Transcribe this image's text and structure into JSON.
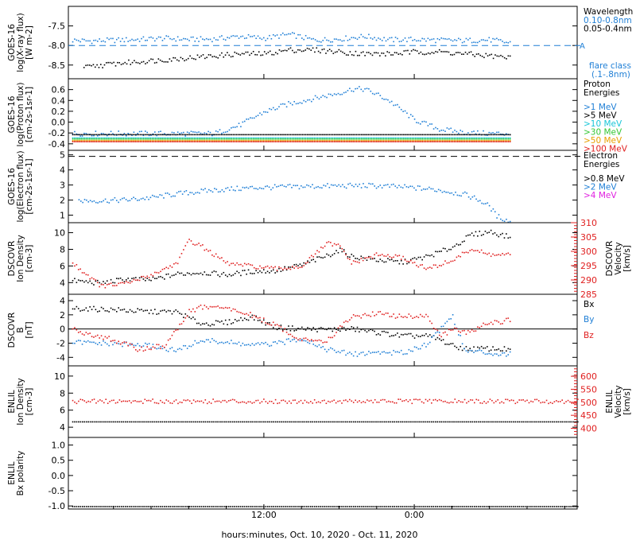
{
  "figure": {
    "xaxis_title": "hours:minutes, Oct. 10, 2020 - Oct. 11, 2020",
    "x_ticks": [
      "12:00",
      "0:00"
    ]
  },
  "chart_data": [
    {
      "id": "xray",
      "type": "scatter",
      "ylabel": [
        "GOES-16",
        "log(X-ray flux)",
        "[W m-2]"
      ],
      "yticks": [
        "-7.5",
        "-8.0",
        "-8.5"
      ],
      "ylim": [
        -8.85,
        -7.0
      ],
      "ticks_values": [
        -7.5,
        -8.0,
        -8.5
      ],
      "legend": {
        "title": "Wavelength",
        "items": [
          {
            "label": "0.10-0.8nm",
            "color": "#1f7fd6"
          },
          {
            "label": "0.05-0.4nm",
            "color": "#000000"
          }
        ]
      },
      "side_notes": {
        "flare_marker": "A",
        "flare_label": [
          "flare class",
          "(.1-.8nm)"
        ]
      },
      "threshold_line": -8.0,
      "series": [
        {
          "name": "0.10-0.8nm",
          "color": "#1f7fd6",
          "x": [
            -3.3,
            -2,
            0,
            2,
            4,
            6,
            8,
            10,
            12,
            14,
            16,
            18,
            20,
            22,
            24,
            26,
            28,
            30,
            31.6
          ],
          "y": [
            -7.85,
            -7.87,
            -7.85,
            -7.83,
            -7.8,
            -7.83,
            -7.82,
            -7.75,
            -7.8,
            -7.7,
            -7.85,
            -7.82,
            -7.75,
            -7.84,
            -7.83,
            -7.85,
            -7.86,
            -7.84,
            -7.92
          ]
        },
        {
          "name": "0.05-0.4nm",
          "color": "#000000",
          "x": [
            -2.4,
            0,
            2,
            4,
            6,
            8,
            10,
            12,
            14,
            16,
            18,
            20,
            22,
            24,
            26,
            28,
            30,
            31.6
          ],
          "y": [
            -8.55,
            -8.45,
            -8.4,
            -8.35,
            -8.3,
            -8.25,
            -8.2,
            -8.2,
            -8.1,
            -8.1,
            -8.15,
            -8.2,
            -8.2,
            -8.15,
            -8.15,
            -8.2,
            -8.25,
            -8.3
          ]
        }
      ]
    },
    {
      "id": "proton",
      "type": "scatter",
      "ylabel": [
        "GOES-16",
        "log(Proton flux)",
        "[cm-2s-1sr-1]"
      ],
      "yticks": [
        "0.6",
        "0.4",
        "0.2",
        "0.0",
        "-0.2",
        "-0.4"
      ],
      "ylim": [
        -0.52,
        0.8
      ],
      "ticks_values": [
        0.6,
        0.4,
        0.2,
        0.0,
        -0.2,
        -0.4
      ],
      "legend": {
        "title": "Proton Energies",
        "items": [
          {
            "label": ">1 MeV",
            "color": "#1f7fd6"
          },
          {
            "label": ">5 MeV",
            "color": "#000000"
          },
          {
            "label": ">10 MeV",
            "color": "#19c6d8"
          },
          {
            "label": ">30 MeV",
            "color": "#33c733"
          },
          {
            "label": ">50 MeV",
            "color": "#e8a000"
          },
          {
            "label": ">100 MeV",
            "color": "#e02020"
          }
        ]
      },
      "series": [
        {
          "name": ">1 MeV",
          "color": "#1f7fd6",
          "x": [
            -3.3,
            0,
            4,
            8,
            10,
            12,
            14,
            16,
            18,
            19,
            20,
            21,
            22,
            24,
            26,
            28,
            30,
            31.6
          ],
          "y": [
            -0.2,
            -0.2,
            -0.2,
            -0.2,
            -0.05,
            0.2,
            0.35,
            0.45,
            0.55,
            0.62,
            0.62,
            0.52,
            0.4,
            0.05,
            -0.12,
            -0.18,
            -0.2,
            -0.2
          ]
        },
        {
          "name": ">5 MeV",
          "color": "#000000",
          "x": [
            -3.3,
            31.6
          ],
          "y": [
            -0.22,
            -0.22
          ]
        },
        {
          "name": ">10 MeV",
          "color": "#19c6d8",
          "x": [
            -3.3,
            31.6
          ],
          "y": [
            -0.28,
            -0.28
          ]
        },
        {
          "name": ">30 MeV",
          "color": "#33c733",
          "x": [
            -3.3,
            31.6
          ],
          "y": [
            -0.3,
            -0.3
          ]
        },
        {
          "name": ">50 MeV",
          "color": "#e8a000",
          "x": [
            -3.3,
            31.6
          ],
          "y": [
            -0.33,
            -0.33
          ]
        },
        {
          "name": ">100 MeV",
          "color": "#e02020",
          "x": [
            -3.3,
            31.6
          ],
          "y": [
            -0.35,
            -0.35
          ]
        }
      ]
    },
    {
      "id": "electron",
      "type": "scatter",
      "ylabel": [
        "GOES-16",
        "log(Electron flux)",
        "[cm-2s-1sr-1]"
      ],
      "yticks": [
        "5",
        "4",
        "3",
        "2",
        "1"
      ],
      "ylim": [
        0.5,
        5.3
      ],
      "ticks_values": [
        5,
        4,
        3,
        2,
        1
      ],
      "threshold_line": 4.9,
      "legend": {
        "title": "Electron Energies",
        "items": [
          {
            "label": ">0.8 MeV",
            "color": "#000000"
          },
          {
            "label": ">2 MeV",
            "color": "#1f7fd6"
          },
          {
            "label": ">4 MeV",
            "color": "#e020e0"
          }
        ]
      },
      "series": [
        {
          "name": ">2 MeV",
          "color": "#1f7fd6",
          "x": [
            -2.8,
            -1,
            1,
            3,
            5,
            8,
            11,
            14,
            17,
            20,
            22,
            24,
            26,
            28,
            29,
            30,
            30.5,
            31.6
          ],
          "y": [
            2.0,
            2.0,
            2.05,
            2.2,
            2.45,
            2.7,
            2.85,
            2.92,
            2.97,
            3.0,
            2.95,
            2.85,
            2.7,
            2.4,
            2.1,
            1.6,
            1.0,
            0.6
          ]
        }
      ]
    },
    {
      "id": "dscovr_density",
      "type": "scatter",
      "ylabel": [
        "DSCOVR",
        "Ion Density",
        "[cm-3]"
      ],
      "yticks": [
        "10",
        "8",
        "6",
        "4"
      ],
      "ylim": [
        2.6,
        11.2
      ],
      "ticks_values": [
        10,
        8,
        6,
        4
      ],
      "right_ylabel": [
        "DSCOVR",
        "Velocity",
        "[km/s]"
      ],
      "right_yticks": [
        "310",
        "305",
        "300",
        "295",
        "290",
        "285"
      ],
      "right_ylim": [
        285,
        310
      ],
      "legend": {
        "title": "",
        "items": []
      },
      "series": [
        {
          "name": "Ion Density",
          "color": "#000000",
          "x": [
            -3.3,
            -1,
            1,
            3,
            5,
            7,
            9,
            11,
            13,
            15,
            17,
            18,
            19,
            21,
            23,
            25,
            27,
            28.5,
            30,
            31.6
          ],
          "y": [
            4.3,
            4.0,
            4.5,
            4.4,
            5.1,
            5.3,
            5.0,
            5.4,
            5.5,
            6.2,
            7.3,
            8.0,
            7.2,
            6.8,
            6.5,
            7.2,
            8.3,
            9.8,
            10.2,
            9.5
          ]
        },
        {
          "name": "Velocity",
          "color": "#e02020",
          "axis": "right",
          "x": [
            -3.3,
            -1,
            1,
            3,
            5,
            6,
            7,
            9,
            11,
            13,
            15,
            17,
            18,
            19,
            21,
            23,
            25,
            27,
            28.5,
            30,
            31.6
          ],
          "y": [
            296,
            288,
            289,
            292,
            296,
            304,
            302,
            296,
            295,
            294,
            295,
            303,
            302,
            296,
            299,
            298,
            294,
            297,
            301,
            299,
            299
          ]
        }
      ]
    },
    {
      "id": "dscovr_b",
      "type": "scatter",
      "ylabel": [
        "DSCOVR",
        "B",
        "[nT]"
      ],
      "yticks": [
        "4",
        "2",
        "0",
        "-2",
        "-4"
      ],
      "ylim": [
        -5.2,
        4.9
      ],
      "ticks_values": [
        4,
        2,
        0,
        -2,
        -4
      ],
      "zero_line": 0,
      "legend": {
        "title": "",
        "items": [
          {
            "label": "Bx",
            "color": "#000000"
          },
          {
            "label": "By",
            "color": "#1f7fd6"
          },
          {
            "label": "Bz",
            "color": "#e02020"
          }
        ]
      },
      "series": [
        {
          "name": "Bx",
          "color": "#000000",
          "x": [
            -3.3,
            0,
            3,
            5,
            7,
            9,
            11,
            13,
            15,
            17,
            19,
            21,
            23,
            25,
            26,
            27,
            28,
            30,
            31.6
          ],
          "y": [
            3.0,
            2.8,
            2.5,
            2.5,
            0.8,
            1.0,
            1.8,
            0.3,
            0.1,
            0.0,
            0.1,
            -0.4,
            -0.9,
            -0.9,
            -1.4,
            -2.3,
            -2.7,
            -2.7,
            -2.8
          ]
        },
        {
          "name": "By",
          "color": "#1f7fd6",
          "x": [
            -3.3,
            0,
            3,
            5,
            7,
            9,
            11,
            13,
            15,
            17,
            19,
            21,
            23,
            25,
            26,
            27,
            28,
            30,
            31.6
          ],
          "y": [
            -1.8,
            -2.0,
            -2.3,
            -3.0,
            -1.5,
            -1.8,
            -2.2,
            -2.0,
            -1.2,
            -2.8,
            -3.5,
            -3.2,
            -3.3,
            -2.0,
            0.0,
            2.0,
            -3.0,
            -3.3,
            -3.5
          ]
        },
        {
          "name": "Bz",
          "color": "#e02020",
          "x": [
            -3.3,
            0,
            2,
            4,
            5,
            6,
            7,
            9,
            10,
            11,
            13,
            15,
            17,
            19,
            21,
            23,
            25,
            26,
            27,
            28,
            30,
            31.6
          ],
          "y": [
            0.0,
            -1.5,
            -2.8,
            -2.3,
            0.0,
            2.5,
            3.2,
            3.0,
            2.5,
            2.0,
            0.5,
            -1.5,
            -1.5,
            1.8,
            2.3,
            1.8,
            2.0,
            -1.0,
            0.0,
            -0.5,
            1.0,
            1.3
          ]
        }
      ]
    },
    {
      "id": "enlil_density",
      "type": "scatter",
      "ylabel": [
        "ENLIL",
        "Ion Density",
        "[cm-3]"
      ],
      "yticks": [
        "10",
        "8",
        "6",
        "4"
      ],
      "ylim": [
        2.8,
        11.2
      ],
      "ticks_values": [
        10,
        8,
        6,
        4
      ],
      "right_ylabel": [
        "ENLIL",
        "Velocity",
        "[km/s]"
      ],
      "right_yticks": [
        "600",
        "550",
        "500",
        "450",
        "400"
      ],
      "right_ylim": [
        365,
        640
      ],
      "legend": {
        "title": "",
        "items": []
      },
      "series": [
        {
          "name": "Ion Density",
          "color": "#000000",
          "x": [
            -3.3,
            37
          ],
          "y": [
            4.7,
            4.7
          ]
        },
        {
          "name": "Velocity",
          "color": "#e02020",
          "axis": "right",
          "x": [
            -3.3,
            37
          ],
          "y": [
            506,
            506
          ]
        }
      ]
    },
    {
      "id": "enlil_bx",
      "type": "scatter",
      "ylabel": [
        "ENLIL",
        "Bx polarity"
      ],
      "yticks": [
        "1.0",
        "0.5",
        "0.0",
        "-0.5",
        "-1.0"
      ],
      "ylim": [
        -1.1,
        1.25
      ],
      "ticks_values": [
        1.0,
        0.5,
        0.0,
        -0.5,
        -1.0
      ],
      "legend": {
        "title": "",
        "items": []
      },
      "series": [
        {
          "name": "Bx polarity",
          "color": "#000000",
          "x": [
            -3.3,
            37
          ],
          "y": [
            -1.0,
            -1.0
          ]
        }
      ]
    }
  ]
}
